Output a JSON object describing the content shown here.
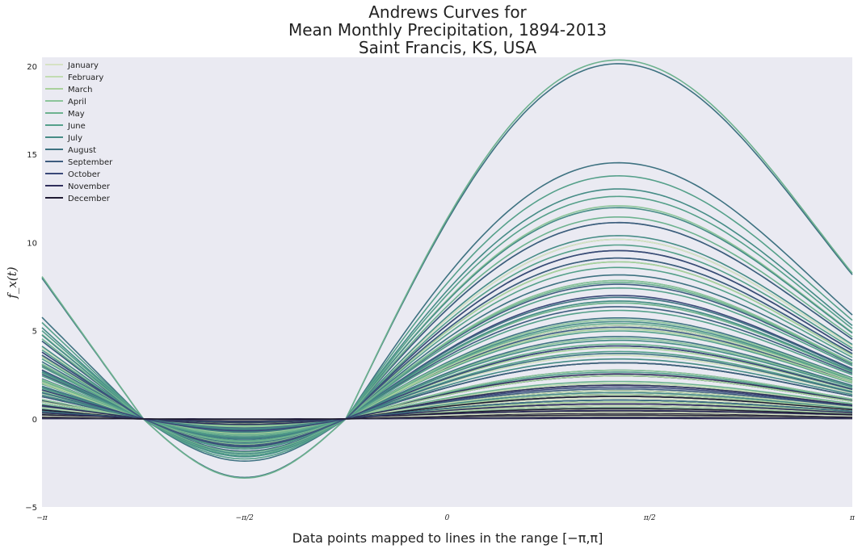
{
  "chart_data": {
    "type": "line",
    "subtype": "andrews-curves",
    "title": "Andrews Curves for",
    "subtitle": [
      "Mean Monthly Precipitation, 1894-2013",
      "Saint Francis, KS, USA"
    ],
    "xlabel": "Data points mapped to lines in the range [−π,π]",
    "ylabel": "f_x(t)",
    "xlim": [
      -3.14159,
      3.14159
    ],
    "ylim": [
      -5,
      20.5
    ],
    "x_ticks": [
      -3.14159,
      -1.5708,
      0,
      1.5708,
      3.14159
    ],
    "x_tick_labels": [
      "−π",
      "−π/2",
      "0",
      "π/2",
      "π"
    ],
    "y_ticks": [
      -5,
      0,
      5,
      10,
      15,
      20
    ],
    "y_tick_labels": [
      "−5",
      "0",
      "5",
      "10",
      "15",
      "20"
    ],
    "grid": false,
    "background": "#eaeaf2",
    "legend_position": "upper-left",
    "series": [
      {
        "name": "January",
        "color": "#d6e2c4",
        "peaks": [
          0.04,
          0.15,
          0.25,
          0.35,
          0.5,
          0.7,
          0.9,
          1.1,
          1.4,
          3.4,
          9.6
        ]
      },
      {
        "name": "February",
        "color": "#c2dcb2",
        "peaks": [
          0.05,
          0.2,
          0.35,
          0.5,
          0.7,
          0.9,
          1.2,
          1.5,
          1.9,
          3.0,
          5.0
        ]
      },
      {
        "name": "March",
        "color": "#a9d19c",
        "peaks": [
          0.2,
          0.5,
          0.9,
          1.3,
          1.8,
          2.3,
          3.0,
          3.8,
          4.8,
          6.2,
          8.4
        ]
      },
      {
        "name": "April",
        "color": "#8cc59a",
        "peaks": [
          0.6,
          1.2,
          1.9,
          2.6,
          3.4,
          4.3,
          5.3,
          6.3,
          7.4,
          9.0,
          11.4
        ]
      },
      {
        "name": "May",
        "color": "#6db28f",
        "peaks": [
          1.2,
          2.0,
          3.0,
          4.0,
          5.1,
          6.2,
          7.3,
          8.4,
          9.6,
          10.8,
          19.2
        ]
      },
      {
        "name": "June",
        "color": "#55a08a",
        "peaks": [
          1.5,
          2.5,
          3.6,
          4.7,
          5.8,
          7.0,
          8.1,
          9.3,
          10.5,
          11.9,
          13.0
        ]
      },
      {
        "name": "July",
        "color": "#468c86",
        "peaks": [
          1.4,
          2.3,
          3.2,
          4.2,
          5.2,
          6.3,
          7.4,
          8.6,
          9.8,
          11.3,
          12.3
        ]
      },
      {
        "name": "August",
        "color": "#3e7281",
        "peaks": [
          1.0,
          1.8,
          2.6,
          3.5,
          4.4,
          5.4,
          6.5,
          7.7,
          9.0,
          13.7,
          19.0
        ]
      },
      {
        "name": "September",
        "color": "#3e5c7e",
        "peaks": [
          0.5,
          1.0,
          1.6,
          2.3,
          3.0,
          3.9,
          4.9,
          6.0,
          7.2,
          8.6,
          10.5
        ]
      },
      {
        "name": "October",
        "color": "#3a4878",
        "peaks": [
          0.2,
          0.5,
          0.8,
          1.2,
          1.7,
          2.3,
          3.0,
          3.9,
          5.0,
          6.6,
          9.0
        ]
      },
      {
        "name": "November",
        "color": "#302f5c",
        "peaks": [
          0.05,
          0.15,
          0.3,
          0.45,
          0.6,
          0.8,
          1.0,
          1.3,
          1.8,
          2.4,
          3.0
        ]
      },
      {
        "name": "December",
        "color": "#201b33",
        "peaks": [
          0.02,
          0.06,
          0.12,
          0.2,
          0.3,
          0.4,
          0.55,
          0.7,
          0.9,
          1.2,
          1.5
        ]
      }
    ]
  }
}
